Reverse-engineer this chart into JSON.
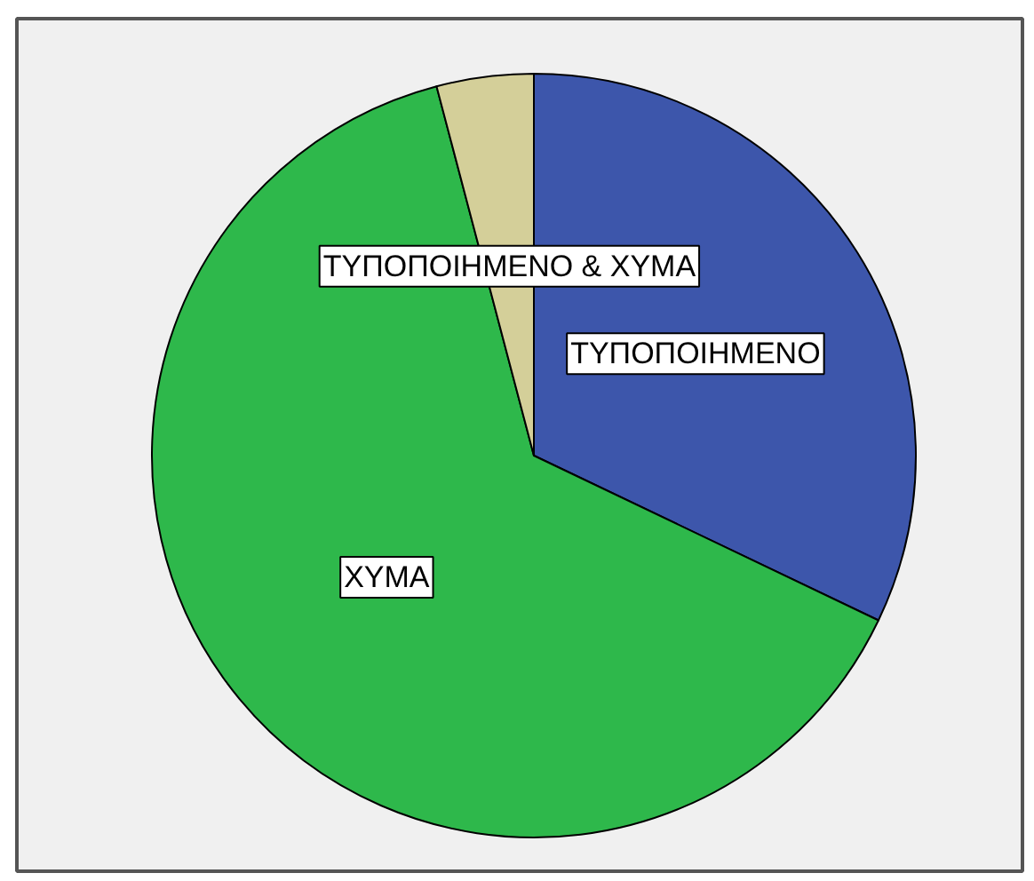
{
  "chart_data": {
    "type": "pie",
    "categories": [
      "ΤΥΠΟΠΟΙΗΜΕΝΟ",
      "ΧΥΜΑ",
      "ΤΥΠΟΠΟΙΗΜΕΝΟ & ΧΥΜΑ"
    ],
    "values": [
      32.1,
      63.8,
      4.1
    ],
    "colors": [
      "#3d56ab",
      "#2eb84b",
      "#d4cf99"
    ]
  }
}
